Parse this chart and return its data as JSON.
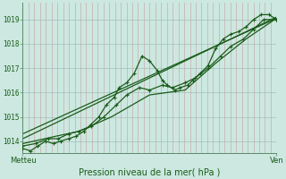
{
  "bg_color": "#cce8e0",
  "grid_color_h": "#a8c8c0",
  "grid_color_v": "#c8a0a0",
  "line_color": "#1a5c1a",
  "xlabel": "Pression niveau de la mer( hPa )",
  "xlabel_color": "#1a5c1a",
  "ytick_vals": [
    1014,
    1015,
    1016,
    1017,
    1018,
    1019
  ],
  "ylim_min": 1013.5,
  "ylim_max": 1019.7,
  "xlim_min": 0,
  "xlim_max": 1.0,
  "xtick_positions": [
    0.0,
    1.0
  ],
  "xtick_labels": [
    "Metteu",
    "Ven"
  ],
  "n_vgrid": 44,
  "line1_x": [
    0.0,
    0.03,
    0.06,
    0.09,
    0.12,
    0.15,
    0.18,
    0.21,
    0.24,
    0.27,
    0.3,
    0.33,
    0.36,
    0.38,
    0.41,
    0.44,
    0.47,
    0.5,
    0.53,
    0.55,
    0.57,
    0.6,
    0.62,
    0.65,
    0.67,
    0.7,
    0.73,
    0.76,
    0.79,
    0.82,
    0.85,
    0.88,
    0.91,
    0.94,
    0.97,
    1.0
  ],
  "line1_y": [
    1013.7,
    1013.6,
    1013.8,
    1014.0,
    1013.9,
    1014.0,
    1014.1,
    1014.2,
    1014.4,
    1014.7,
    1015.0,
    1015.5,
    1015.8,
    1016.2,
    1016.4,
    1016.8,
    1017.5,
    1017.3,
    1016.9,
    1016.5,
    1016.3,
    1016.1,
    1016.2,
    1016.3,
    1016.5,
    1016.8,
    1017.1,
    1017.8,
    1018.2,
    1018.4,
    1018.5,
    1018.7,
    1019.0,
    1019.2,
    1019.2,
    1019.0
  ],
  "line2_x": [
    0.0,
    0.05,
    0.1,
    0.14,
    0.18,
    0.22,
    0.27,
    0.32,
    0.37,
    0.41,
    0.46,
    0.5,
    0.55,
    0.59,
    0.64,
    0.68,
    0.73,
    0.78,
    0.82,
    0.87,
    0.91,
    0.95,
    1.0
  ],
  "line2_y": [
    1013.8,
    1013.9,
    1014.1,
    1014.1,
    1014.3,
    1014.4,
    1014.6,
    1015.0,
    1015.5,
    1015.9,
    1016.2,
    1016.1,
    1016.3,
    1016.2,
    1016.4,
    1016.6,
    1017.0,
    1017.5,
    1017.9,
    1018.2,
    1018.6,
    1019.0,
    1019.0
  ],
  "line3_x": [
    0.0,
    1.0
  ],
  "line3_y": [
    1014.1,
    1019.1
  ],
  "line4_x": [
    0.0,
    1.0
  ],
  "line4_y": [
    1014.3,
    1019.05
  ],
  "line5_x": [
    0.0,
    0.13,
    0.22,
    0.35,
    0.5,
    0.64,
    0.76,
    0.88,
    1.0
  ],
  "line5_y": [
    1013.9,
    1014.2,
    1014.4,
    1015.0,
    1015.9,
    1016.1,
    1017.2,
    1018.2,
    1019.05
  ]
}
